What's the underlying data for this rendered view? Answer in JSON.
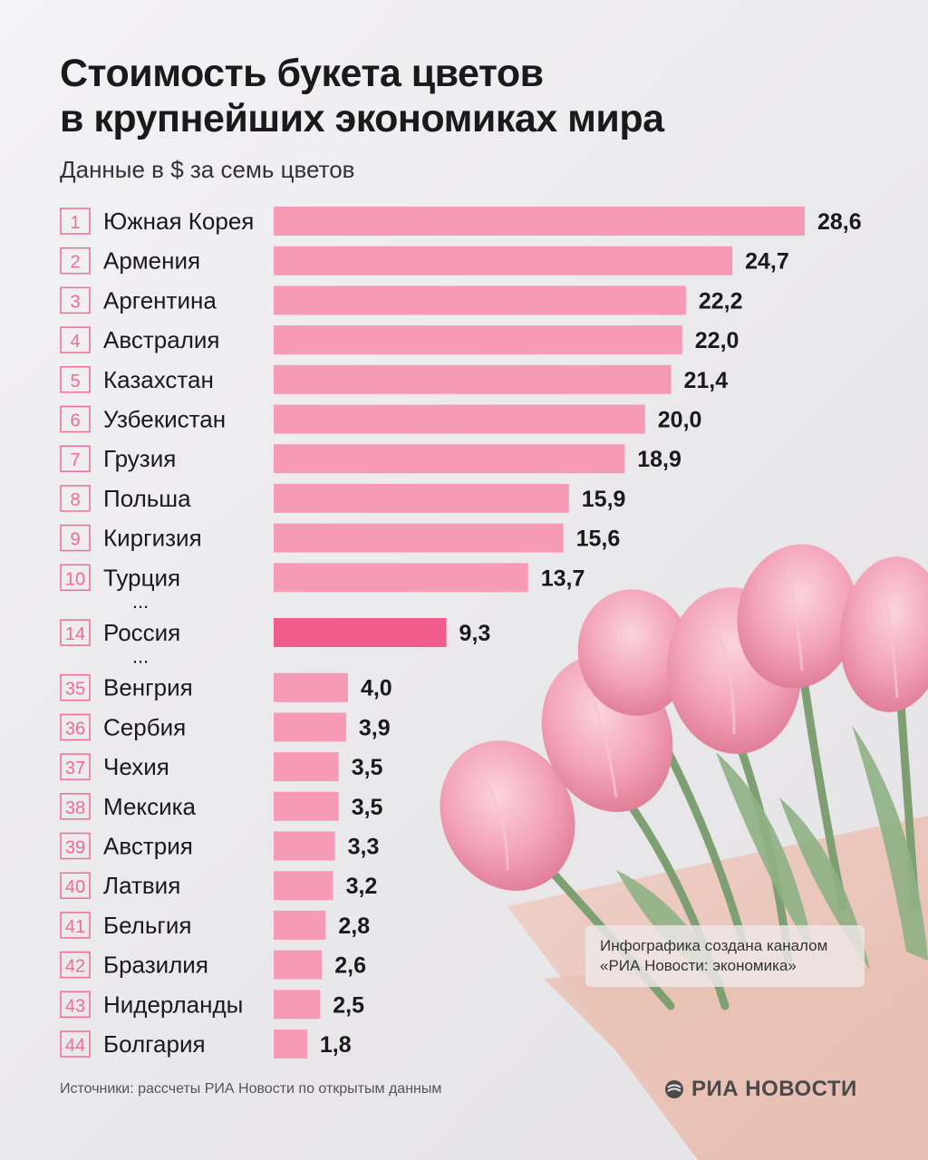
{
  "header": {
    "title_line1": "Стоимость букета цветов",
    "title_line2": "в крупнейших экономиках мира",
    "subtitle": "Данные в $ за семь цветов"
  },
  "colors": {
    "bar": "#f79ab5",
    "highlight": "#f05c8b",
    "rank_box": "#f06c94"
  },
  "chart_data": {
    "type": "bar",
    "orientation": "horizontal",
    "title": "Стоимость букета цветов в крупнейших экономиках мира",
    "subtitle": "Данные в $ за семь цветов",
    "xlim": [
      0,
      28.6
    ],
    "grid": false,
    "gap_marker": "...",
    "rows": [
      {
        "rank": "1",
        "country": "Южная Корея",
        "value": 28.6,
        "label": "28,6"
      },
      {
        "rank": "2",
        "country": "Армения",
        "value": 24.7,
        "label": "24,7"
      },
      {
        "rank": "3",
        "country": "Аргентина",
        "value": 22.2,
        "label": "22,2"
      },
      {
        "rank": "4",
        "country": "Австралия",
        "value": 22.0,
        "label": "22,0"
      },
      {
        "rank": "5",
        "country": "Казахстан",
        "value": 21.4,
        "label": "21,4"
      },
      {
        "rank": "6",
        "country": "Узбекистан",
        "value": 20.0,
        "label": "20,0"
      },
      {
        "rank": "7",
        "country": "Грузия",
        "value": 18.9,
        "label": "18,9"
      },
      {
        "rank": "8",
        "country": "Польша",
        "value": 15.9,
        "label": "15,9"
      },
      {
        "rank": "9",
        "country": "Киргизия",
        "value": 15.6,
        "label": "15,6"
      },
      {
        "rank": "10",
        "country": "Турция",
        "value": 13.7,
        "label": "13,7"
      },
      {
        "gap": true
      },
      {
        "rank": "14",
        "country": "Россия",
        "value": 9.3,
        "label": "9,3",
        "highlight": true
      },
      {
        "gap": true
      },
      {
        "rank": "35",
        "country": "Венгрия",
        "value": 4.0,
        "label": "4,0"
      },
      {
        "rank": "36",
        "country": "Сербия",
        "value": 3.9,
        "label": "3,9"
      },
      {
        "rank": "37",
        "country": "Чехия",
        "value": 3.5,
        "label": "3,5"
      },
      {
        "rank": "38",
        "country": "Мексика",
        "value": 3.5,
        "label": "3,5"
      },
      {
        "rank": "39",
        "country": "Австрия",
        "value": 3.3,
        "label": "3,3"
      },
      {
        "rank": "40",
        "country": "Латвия",
        "value": 3.2,
        "label": "3,2"
      },
      {
        "rank": "41",
        "country": "Бельгия",
        "value": 2.8,
        "label": "2,8"
      },
      {
        "rank": "42",
        "country": "Бразилия",
        "value": 2.6,
        "label": "2,6"
      },
      {
        "rank": "43",
        "country": "Нидерланды",
        "value": 2.5,
        "label": "2,5"
      },
      {
        "rank": "44",
        "country": "Болгария",
        "value": 1.8,
        "label": "1,8"
      }
    ]
  },
  "note": {
    "line1": "Инфографика создана каналом",
    "line2": "«РИА Новости: экономика»"
  },
  "footer": {
    "source": "Источники: рассчеты РИА Новости по открытым данным",
    "logo_text": "РИА НОВОСТИ"
  },
  "decor": {
    "image": "tulip-bouquet"
  }
}
